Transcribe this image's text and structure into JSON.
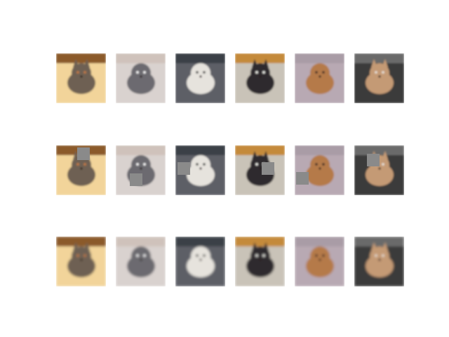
{
  "figure": {
    "grid": {
      "rows": 3,
      "cols": 6
    },
    "row_kinds": [
      "original",
      "occluded",
      "reconstructed"
    ],
    "subjects": [
      "cat",
      "dog",
      "dog",
      "cat",
      "dog",
      "cat"
    ],
    "palette": {
      "background": "#ffffff",
      "occlusion_patch": "#8a8a8a"
    },
    "tiles": [
      {
        "subject": "cat",
        "bg": "#f2d49a",
        "body": "#6e6152",
        "accent": "#c77a44",
        "top": "#8b5a2b"
      },
      {
        "subject": "dog",
        "bg": "#d9d2cf",
        "body": "#6c6a70",
        "accent": "#ffffff",
        "top": "#cfc2bb"
      },
      {
        "subject": "dog",
        "bg": "#5d5f66",
        "body": "#e6e3dd",
        "accent": "#2b2b2b",
        "top": "#3b3f46"
      },
      {
        "subject": "cat",
        "bg": "#c9c3b8",
        "body": "#2f2b2d",
        "accent": "#f5f5f0",
        "top": "#c48a3a"
      },
      {
        "subject": "dog",
        "bg": "#b8a9b3",
        "body": "#b57a4a",
        "accent": "#2d2020",
        "top": "#a99ca6"
      },
      {
        "subject": "cat",
        "bg": "#3a3a3a",
        "body": "#c49a74",
        "accent": "#e8e2da",
        "top": "#6a6a6a"
      }
    ]
  }
}
